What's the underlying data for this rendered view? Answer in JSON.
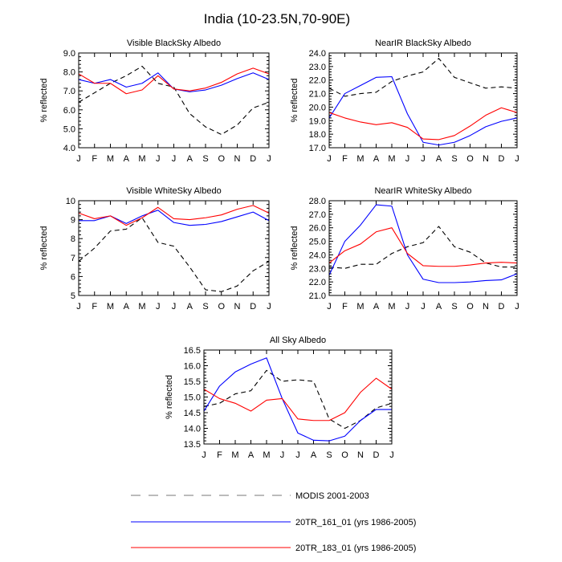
{
  "figure": {
    "title": "India (10-23.5N,70-90E)"
  },
  "legend": [
    {
      "name": "MODIS 2001-2003",
      "color": "#000000",
      "dash": true
    },
    {
      "name": "20TR_161_01 (yrs 1986-2005)",
      "color": "#0000ff",
      "dash": false
    },
    {
      "name": "20TR_183_01 (yrs 1986-2005)",
      "color": "#ff0000",
      "dash": false
    }
  ],
  "chart_data": [
    {
      "type": "line",
      "title": "Visible BlackSky Albedo",
      "ylabel": "% reflected",
      "x": [
        "J",
        "F",
        "M",
        "A",
        "M",
        "J",
        "J",
        "A",
        "S",
        "O",
        "N",
        "D",
        "J"
      ],
      "ylim": [
        4.0,
        9.0
      ],
      "yticks": [
        4.0,
        5.0,
        6.0,
        7.0,
        8.0,
        9.0
      ],
      "ytick_labels": [
        "4.0",
        "5.0",
        "6.0",
        "7.0",
        "8.0",
        "9.0"
      ],
      "series": [
        {
          "name": "MODIS 2001-2003",
          "values": [
            6.4,
            6.9,
            7.4,
            7.8,
            8.3,
            7.4,
            7.2,
            5.8,
            5.1,
            4.7,
            5.2,
            6.1,
            6.4
          ]
        },
        {
          "name": "20TR_161_01 (yrs 1986-2005)",
          "values": [
            7.6,
            7.4,
            7.6,
            7.2,
            7.4,
            7.95,
            7.1,
            6.95,
            7.05,
            7.3,
            7.65,
            7.95,
            7.6
          ]
        },
        {
          "name": "20TR_183_01 (yrs 1986-2005)",
          "values": [
            7.9,
            7.4,
            7.4,
            6.85,
            7.05,
            7.8,
            7.1,
            7.0,
            7.15,
            7.45,
            7.9,
            8.2,
            7.9
          ]
        }
      ]
    },
    {
      "type": "line",
      "title": "NearIR BlackSky Albedo",
      "ylabel": "% reflected",
      "x": [
        "J",
        "F",
        "M",
        "A",
        "M",
        "J",
        "J",
        "A",
        "S",
        "O",
        "N",
        "D",
        "J"
      ],
      "ylim": [
        17.0,
        24.0
      ],
      "yticks": [
        17.0,
        18.0,
        19.0,
        20.0,
        21.0,
        22.0,
        23.0,
        24.0
      ],
      "ytick_labels": [
        "17.0",
        "18.0",
        "19.0",
        "20.0",
        "21.0",
        "22.0",
        "23.0",
        "24.0"
      ],
      "series": [
        {
          "name": "MODIS 2001-2003",
          "values": [
            21.4,
            20.8,
            21.0,
            21.1,
            21.9,
            22.3,
            22.6,
            23.6,
            22.2,
            21.8,
            21.4,
            21.5,
            21.4
          ]
        },
        {
          "name": "20TR_161_01 (yrs 1986-2005)",
          "values": [
            19.2,
            21.0,
            21.6,
            22.2,
            22.25,
            19.5,
            17.4,
            17.2,
            17.4,
            17.9,
            18.55,
            18.95,
            19.2
          ]
        },
        {
          "name": "20TR_183_01 (yrs 1986-2005)",
          "values": [
            19.6,
            19.2,
            18.9,
            18.7,
            18.85,
            18.5,
            17.65,
            17.6,
            17.9,
            18.6,
            19.4,
            19.95,
            19.6
          ]
        }
      ]
    },
    {
      "type": "line",
      "title": "Visible WhiteSky Albedo",
      "ylabel": "% reflected",
      "x": [
        "J",
        "F",
        "M",
        "A",
        "M",
        "J",
        "J",
        "A",
        "S",
        "O",
        "N",
        "D",
        "J"
      ],
      "ylim": [
        5,
        10
      ],
      "yticks": [
        5,
        6,
        7,
        8,
        9,
        10
      ],
      "ytick_labels": [
        "5",
        "6",
        "7",
        "8",
        "9",
        "10"
      ],
      "series": [
        {
          "name": "MODIS 2001-2003",
          "values": [
            6.8,
            7.5,
            8.4,
            8.5,
            9.1,
            7.8,
            7.6,
            6.5,
            5.3,
            5.2,
            5.5,
            6.3,
            6.8
          ]
        },
        {
          "name": "20TR_161_01 (yrs 1986-2005)",
          "values": [
            8.95,
            8.95,
            9.2,
            8.8,
            9.2,
            9.5,
            8.85,
            8.7,
            8.75,
            8.9,
            9.15,
            9.4,
            8.95
          ]
        },
        {
          "name": "20TR_183_01 (yrs 1986-2005)",
          "values": [
            9.35,
            9.05,
            9.2,
            8.7,
            9.1,
            9.65,
            9.05,
            9.0,
            9.1,
            9.25,
            9.55,
            9.75,
            9.35
          ]
        }
      ]
    },
    {
      "type": "line",
      "title": "NearIR WhiteSky Albedo",
      "ylabel": "% reflected",
      "x": [
        "J",
        "F",
        "M",
        "A",
        "M",
        "J",
        "J",
        "A",
        "S",
        "O",
        "N",
        "D",
        "J"
      ],
      "ylim": [
        21.0,
        28.0
      ],
      "yticks": [
        21.0,
        22.0,
        23.0,
        24.0,
        25.0,
        26.0,
        27.0,
        28.0
      ],
      "ytick_labels": [
        "21.0",
        "22.0",
        "23.0",
        "24.0",
        "25.0",
        "26.0",
        "27.0",
        "28.0"
      ],
      "series": [
        {
          "name": "MODIS 2001-2003",
          "values": [
            23.1,
            23.0,
            23.3,
            23.3,
            24.1,
            24.6,
            24.9,
            26.1,
            24.6,
            24.2,
            23.4,
            23.1,
            23.1
          ]
        },
        {
          "name": "20TR_161_01 (yrs 1986-2005)",
          "values": [
            22.5,
            25.0,
            26.2,
            27.7,
            27.6,
            24.0,
            22.2,
            21.95,
            21.95,
            22.0,
            22.1,
            22.15,
            22.6
          ]
        },
        {
          "name": "20TR_183_01 (yrs 1986-2005)",
          "values": [
            23.4,
            24.3,
            24.8,
            25.7,
            26.0,
            24.1,
            23.2,
            23.15,
            23.15,
            23.25,
            23.4,
            23.45,
            23.4
          ]
        }
      ]
    },
    {
      "type": "line",
      "title": "All Sky Albedo",
      "ylabel": "% reflected",
      "x": [
        "J",
        "F",
        "M",
        "A",
        "M",
        "J",
        "J",
        "A",
        "S",
        "O",
        "N",
        "D",
        "J"
      ],
      "ylim": [
        13.5,
        16.5
      ],
      "yticks": [
        13.5,
        14.0,
        14.5,
        15.0,
        15.5,
        16.0,
        16.5
      ],
      "ytick_labels": [
        "13.5",
        "14.0",
        "14.5",
        "15.0",
        "15.5",
        "16.0",
        "16.5"
      ],
      "series": [
        {
          "name": "MODIS 2001-2003",
          "values": [
            14.7,
            14.8,
            15.1,
            15.2,
            15.85,
            15.5,
            15.55,
            15.5,
            14.3,
            14.0,
            14.25,
            14.65,
            14.8
          ]
        },
        {
          "name": "20TR_161_01 (yrs 1986-2005)",
          "values": [
            14.55,
            15.35,
            15.8,
            16.05,
            16.25,
            14.95,
            13.85,
            13.62,
            13.6,
            13.75,
            14.25,
            14.6,
            14.6
          ]
        },
        {
          "name": "20TR_183_01 (yrs 1986-2005)",
          "values": [
            15.25,
            14.95,
            14.8,
            14.55,
            14.9,
            14.95,
            14.3,
            14.25,
            14.25,
            14.5,
            15.15,
            15.6,
            15.25
          ]
        }
      ]
    }
  ]
}
